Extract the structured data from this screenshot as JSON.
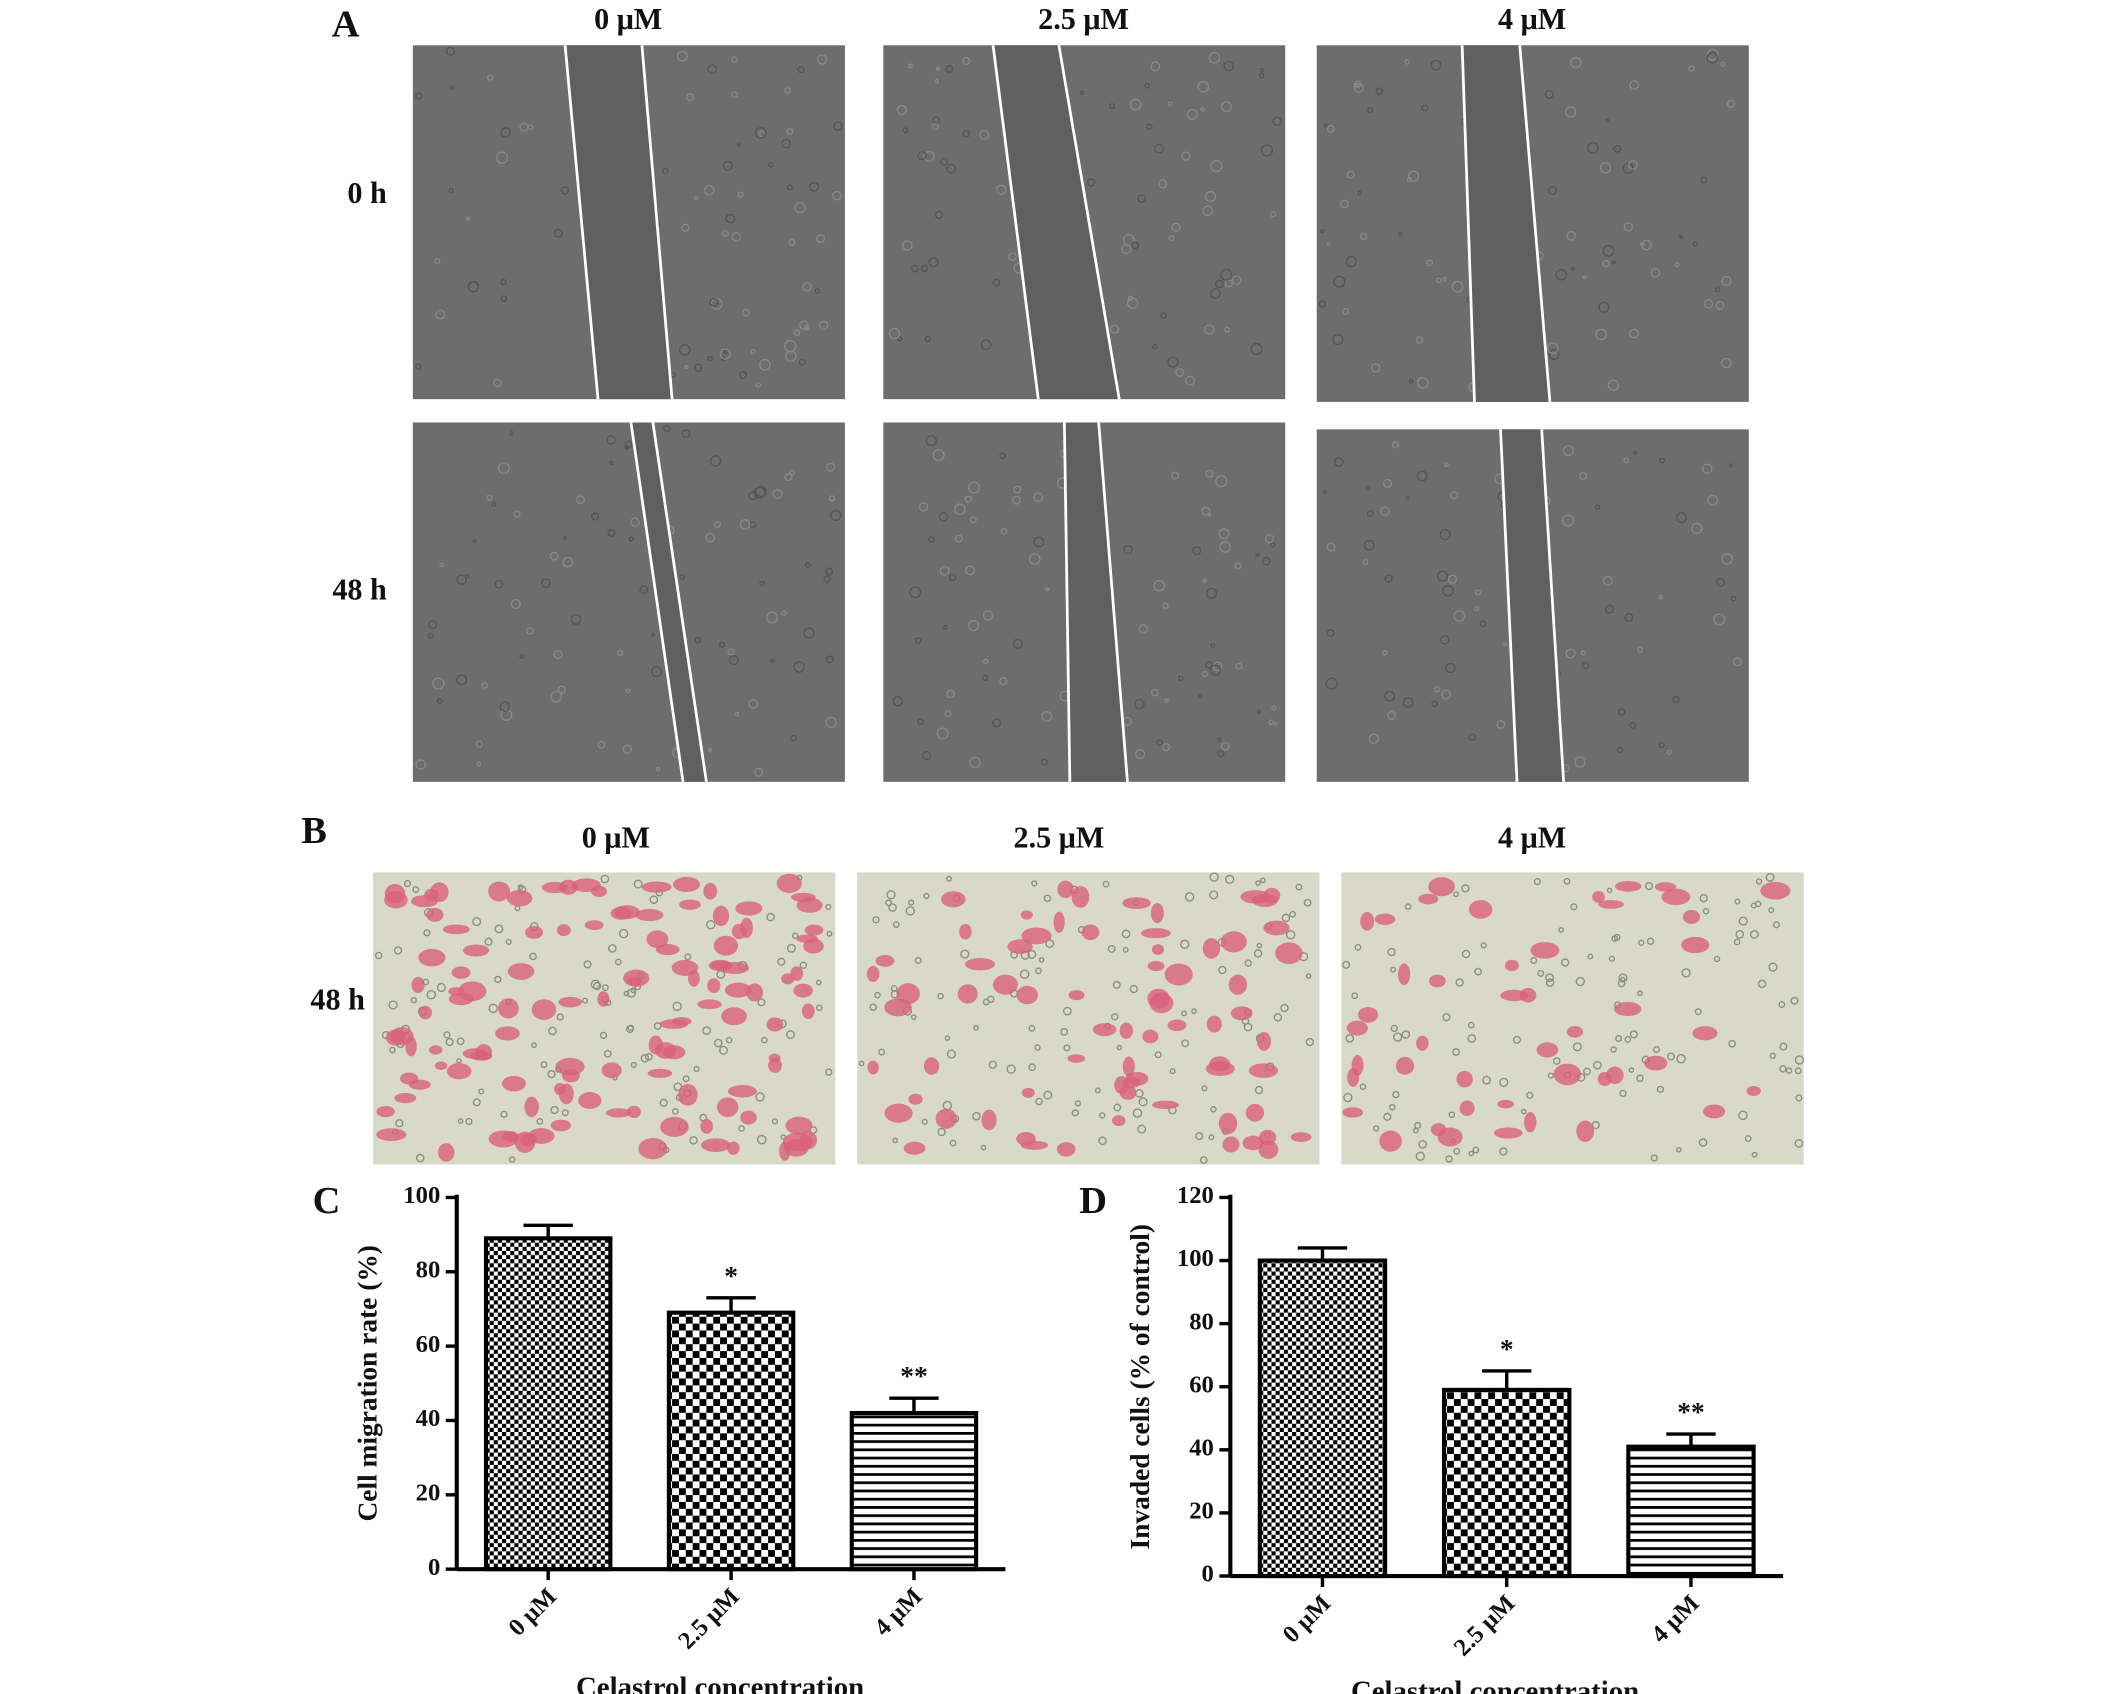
{
  "panel_a": {
    "label": "A",
    "columns": [
      "0  μM",
      "2.5 μM",
      "4 μM"
    ],
    "rows": [
      "0 h",
      "48 h"
    ]
  },
  "panel_b": {
    "label": "B",
    "columns": [
      "0  μM",
      "2.5 μM",
      "4 μM"
    ],
    "rows": [
      "48 h"
    ]
  },
  "chart_data": [
    {
      "type": "bar",
      "panel": "C",
      "ylabel": "Cell migration rate (%)",
      "xlabel": "Celastrol concentration",
      "categories": [
        "0 μM",
        "2.5 μM",
        "4 μM"
      ],
      "values": [
        89,
        69,
        42
      ],
      "errors": [
        3.5,
        4,
        4
      ],
      "significance": [
        null,
        "*",
        "**"
      ],
      "ylim": [
        0,
        100
      ],
      "yticks": [
        0,
        20,
        40,
        60,
        80,
        100
      ],
      "color": "#000000"
    },
    {
      "type": "bar",
      "panel": "D",
      "ylabel": "Invaded cells (% of control)",
      "xlabel": "Celastrol concentration",
      "categories": [
        "0 μM",
        "2.5 μM",
        "4 μM"
      ],
      "values": [
        100,
        59,
        41
      ],
      "errors": [
        4,
        6,
        4
      ],
      "significance": [
        null,
        "*",
        "**"
      ],
      "ylim": [
        0,
        120
      ],
      "yticks": [
        0,
        20,
        40,
        60,
        80,
        100,
        120
      ],
      "color": "#000000"
    }
  ]
}
